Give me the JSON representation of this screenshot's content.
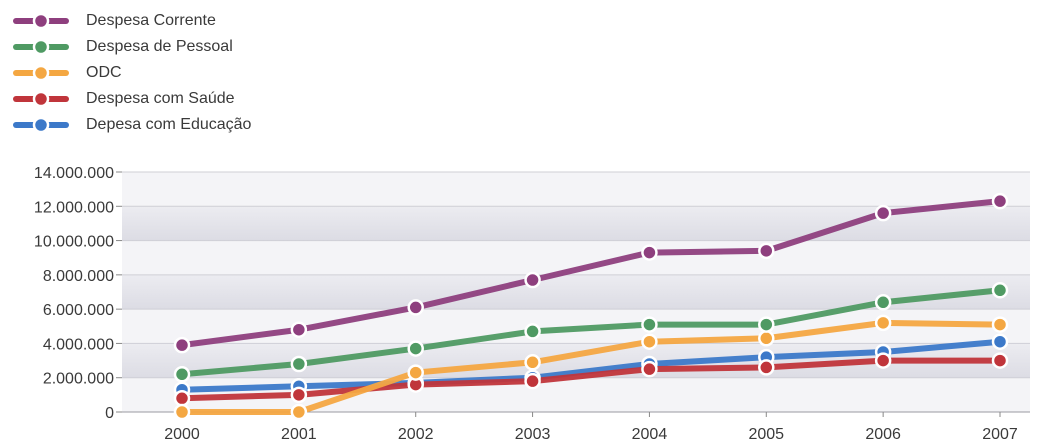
{
  "chart_data": {
    "type": "line",
    "categories": [
      "2000",
      "2001",
      "2002",
      "2003",
      "2004",
      "2005",
      "2006",
      "2007"
    ],
    "ylim": [
      0,
      14000000
    ],
    "y_ticks": [
      {
        "value": 0,
        "label": "0"
      },
      {
        "value": 2000000,
        "label": "2.000.000"
      },
      {
        "value": 4000000,
        "label": "4.000.000"
      },
      {
        "value": 6000000,
        "label": "6.000.000"
      },
      {
        "value": 8000000,
        "label": "8.000.000"
      },
      {
        "value": 10000000,
        "label": "10.000.000"
      },
      {
        "value": 12000000,
        "label": "12.000.000"
      },
      {
        "value": 14000000,
        "label": "14.000.000"
      }
    ],
    "legend_position": "top-left",
    "grid": true,
    "series": [
      {
        "name": "Despesa Corrente",
        "color": "#8e3f7e",
        "values": [
          3900000,
          4800000,
          6100000,
          7700000,
          9300000,
          9400000,
          11600000,
          12300000
        ]
      },
      {
        "name": "Despesa de Pessoal",
        "color": "#4f9a63",
        "values": [
          2200000,
          2800000,
          3700000,
          4700000,
          5100000,
          5100000,
          6400000,
          7100000
        ]
      },
      {
        "name": "ODC",
        "color": "#f4a742",
        "values": [
          0,
          0,
          2300000,
          2900000,
          4100000,
          4300000,
          5200000,
          5100000
        ]
      },
      {
        "name": "Despesa com Saúde",
        "color": "#c0353b",
        "values": [
          800000,
          1000000,
          1600000,
          1800000,
          2500000,
          2600000,
          3000000,
          3000000
        ]
      },
      {
        "name": "Depesa com Educação",
        "color": "#3c79c9",
        "values": [
          1300000,
          1500000,
          1700000,
          2000000,
          2800000,
          3200000,
          3500000,
          4100000
        ]
      }
    ]
  }
}
